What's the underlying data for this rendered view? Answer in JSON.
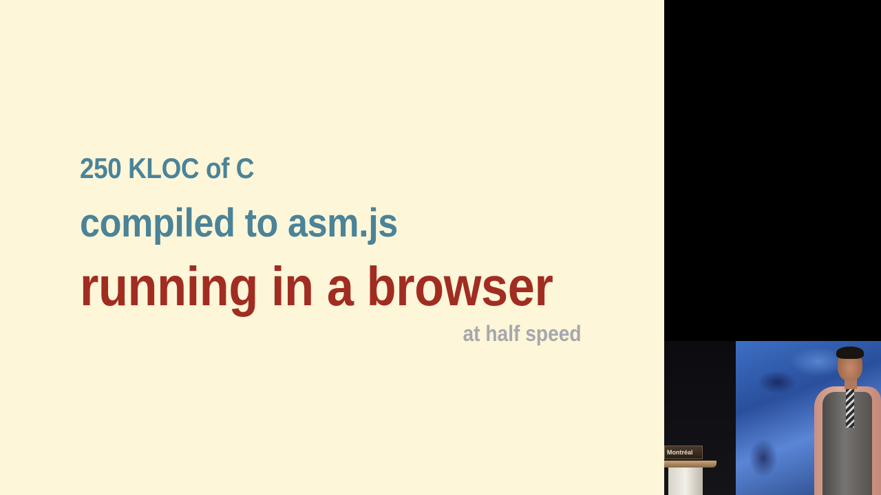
{
  "slide": {
    "line1": "250 KLOC of C",
    "line2": "compiled to asm.js",
    "line3": "running in a browser",
    "line4": "at half speed"
  },
  "colors": {
    "slide_background": "#fdf6d8",
    "teal_text": "#4b8398",
    "red_text": "#a12d22",
    "gray_text": "#a7a7ad"
  },
  "video": {
    "podium_sign": "Montréal"
  }
}
